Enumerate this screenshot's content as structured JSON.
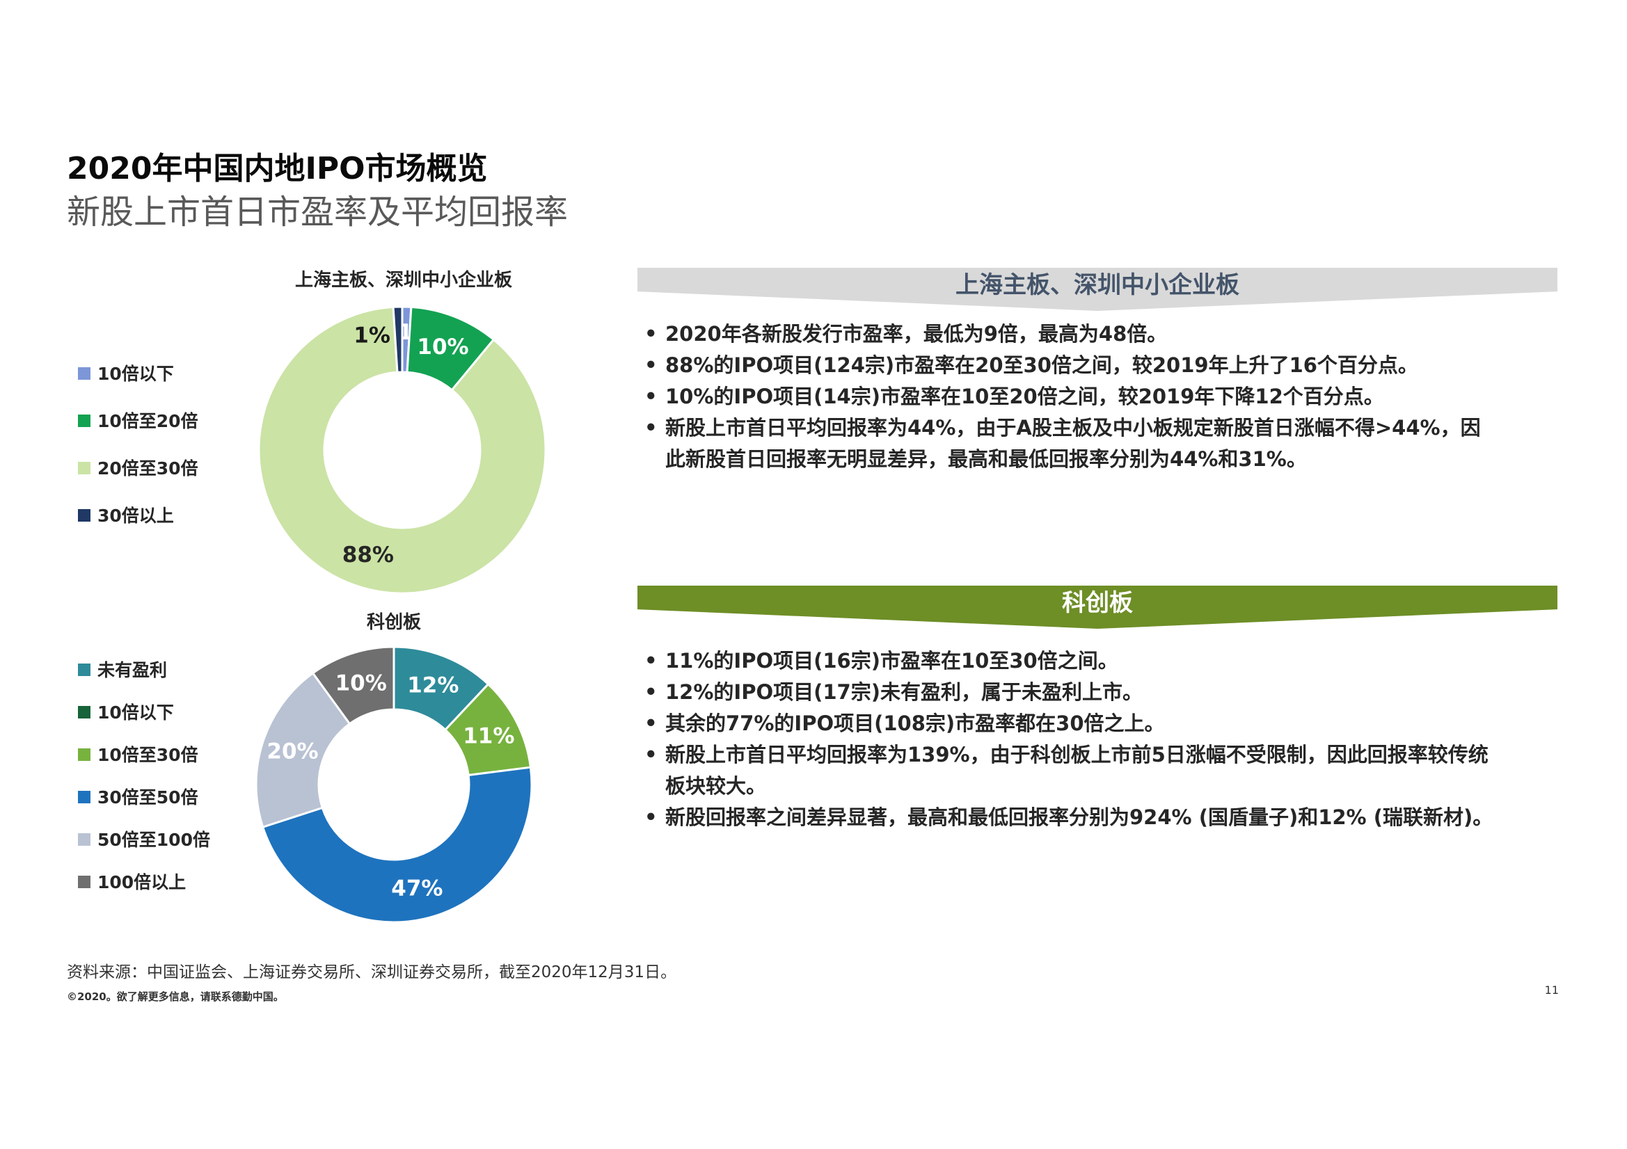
{
  "header": {
    "title": "2020年中国内地IPO市场概览",
    "subtitle": "新股上市首日市盈率及平均回报率"
  },
  "chart_data": [
    {
      "type": "pie",
      "subtype": "donut",
      "title": "上海主板、深圳中小企业板",
      "legend_position": "left",
      "segments": [
        {
          "label": "10倍以下",
          "value": 1,
          "color": "#7C96D8",
          "label_color": "#FFFFFF",
          "label_pos": "band",
          "label_offset_deg": 5
        },
        {
          "label": "10倍至20倍",
          "value": 10,
          "color": "#13A252",
          "label_color": "#FFFFFF",
          "label_pos": "mid"
        },
        {
          "label": "20倍至30倍",
          "value": 88,
          "color": "#CBE3A5",
          "label_color": "#262626",
          "label_pos": "mid"
        },
        {
          "label": "30倍以上",
          "value": 1,
          "color": "#1F3864",
          "label_color": "#1A1A1A",
          "label_pos": "band",
          "label_offset_deg": -13
        }
      ]
    },
    {
      "type": "pie",
      "subtype": "donut",
      "title": "科创板",
      "legend_position": "left",
      "segments": [
        {
          "label": "未有盈利",
          "value": 12,
          "color": "#2E8B9A",
          "label_color": "#FFFFFF",
          "label_pos": "mid"
        },
        {
          "label": "10倍以下",
          "value": 0,
          "color": "#17633A",
          "label_color": "#FFFFFF",
          "label_pos": "mid"
        },
        {
          "label": "10倍至30倍",
          "value": 11,
          "color": "#77B23E",
          "label_color": "#FFFFFF",
          "label_pos": "mid"
        },
        {
          "label": "30倍至50倍",
          "value": 47,
          "color": "#1E73BE",
          "label_color": "#FFFFFF",
          "label_pos": "mid"
        },
        {
          "label": "50倍至100倍",
          "value": 20,
          "color": "#B9C2D3",
          "label_color": "#FFFFFF",
          "label_pos": "mid"
        },
        {
          "label": "100倍以上",
          "value": 10,
          "color": "#6F6F6F",
          "label_color": "#FFFFFF",
          "label_pos": "mid"
        }
      ]
    }
  ],
  "sections": [
    {
      "banner": "上海主板、深圳中小企业板",
      "banner_color": "#D9D9D9",
      "banner_text_color": "#44546A",
      "bullets": [
        "2020年各新股发行市盈率，最低为9倍，最高为48倍。",
        "88%的IPO项目(124宗)市盈率在20至30倍之间，较2019年上升了16个百分点。",
        "10%的IPO项目(14宗)市盈率在10至20倍之间，较2019年下降12个百分点。",
        "新股上市首日平均回报率为44%，由于A股主板及中小板规定新股首日涨幅不得>44%，因此新股首日回报率无明显差异，最高和最低回报率分别为44%和31%。"
      ]
    },
    {
      "banner": "科创板",
      "banner_color": "#6E8E26",
      "banner_text_color": "#FFFFFF",
      "bullets": [
        "11%的IPO项目(16宗)市盈率在10至30倍之间。",
        "12%的IPO项目(17宗)未有盈利，属于未盈利上市。",
        "其余的77%的IPO项目(108宗)市盈率都在30倍之上。",
        "新股上市首日平均回报率为139%，由于科创板上市前5日涨幅不受限制，因此回报率较传统板块较大。",
        "新股回报率之间差异显著，最高和最低回报率分别为924% (国盾量子)和12% (瑞联新材)。"
      ]
    }
  ],
  "footer": {
    "source": "资料来源：中国证监会、上海证券交易所、深圳证券交易所，截至2020年12月31日。",
    "copyright": "©2020。欲了解更多信息，请联系德勤中国。",
    "page_number": "11"
  }
}
